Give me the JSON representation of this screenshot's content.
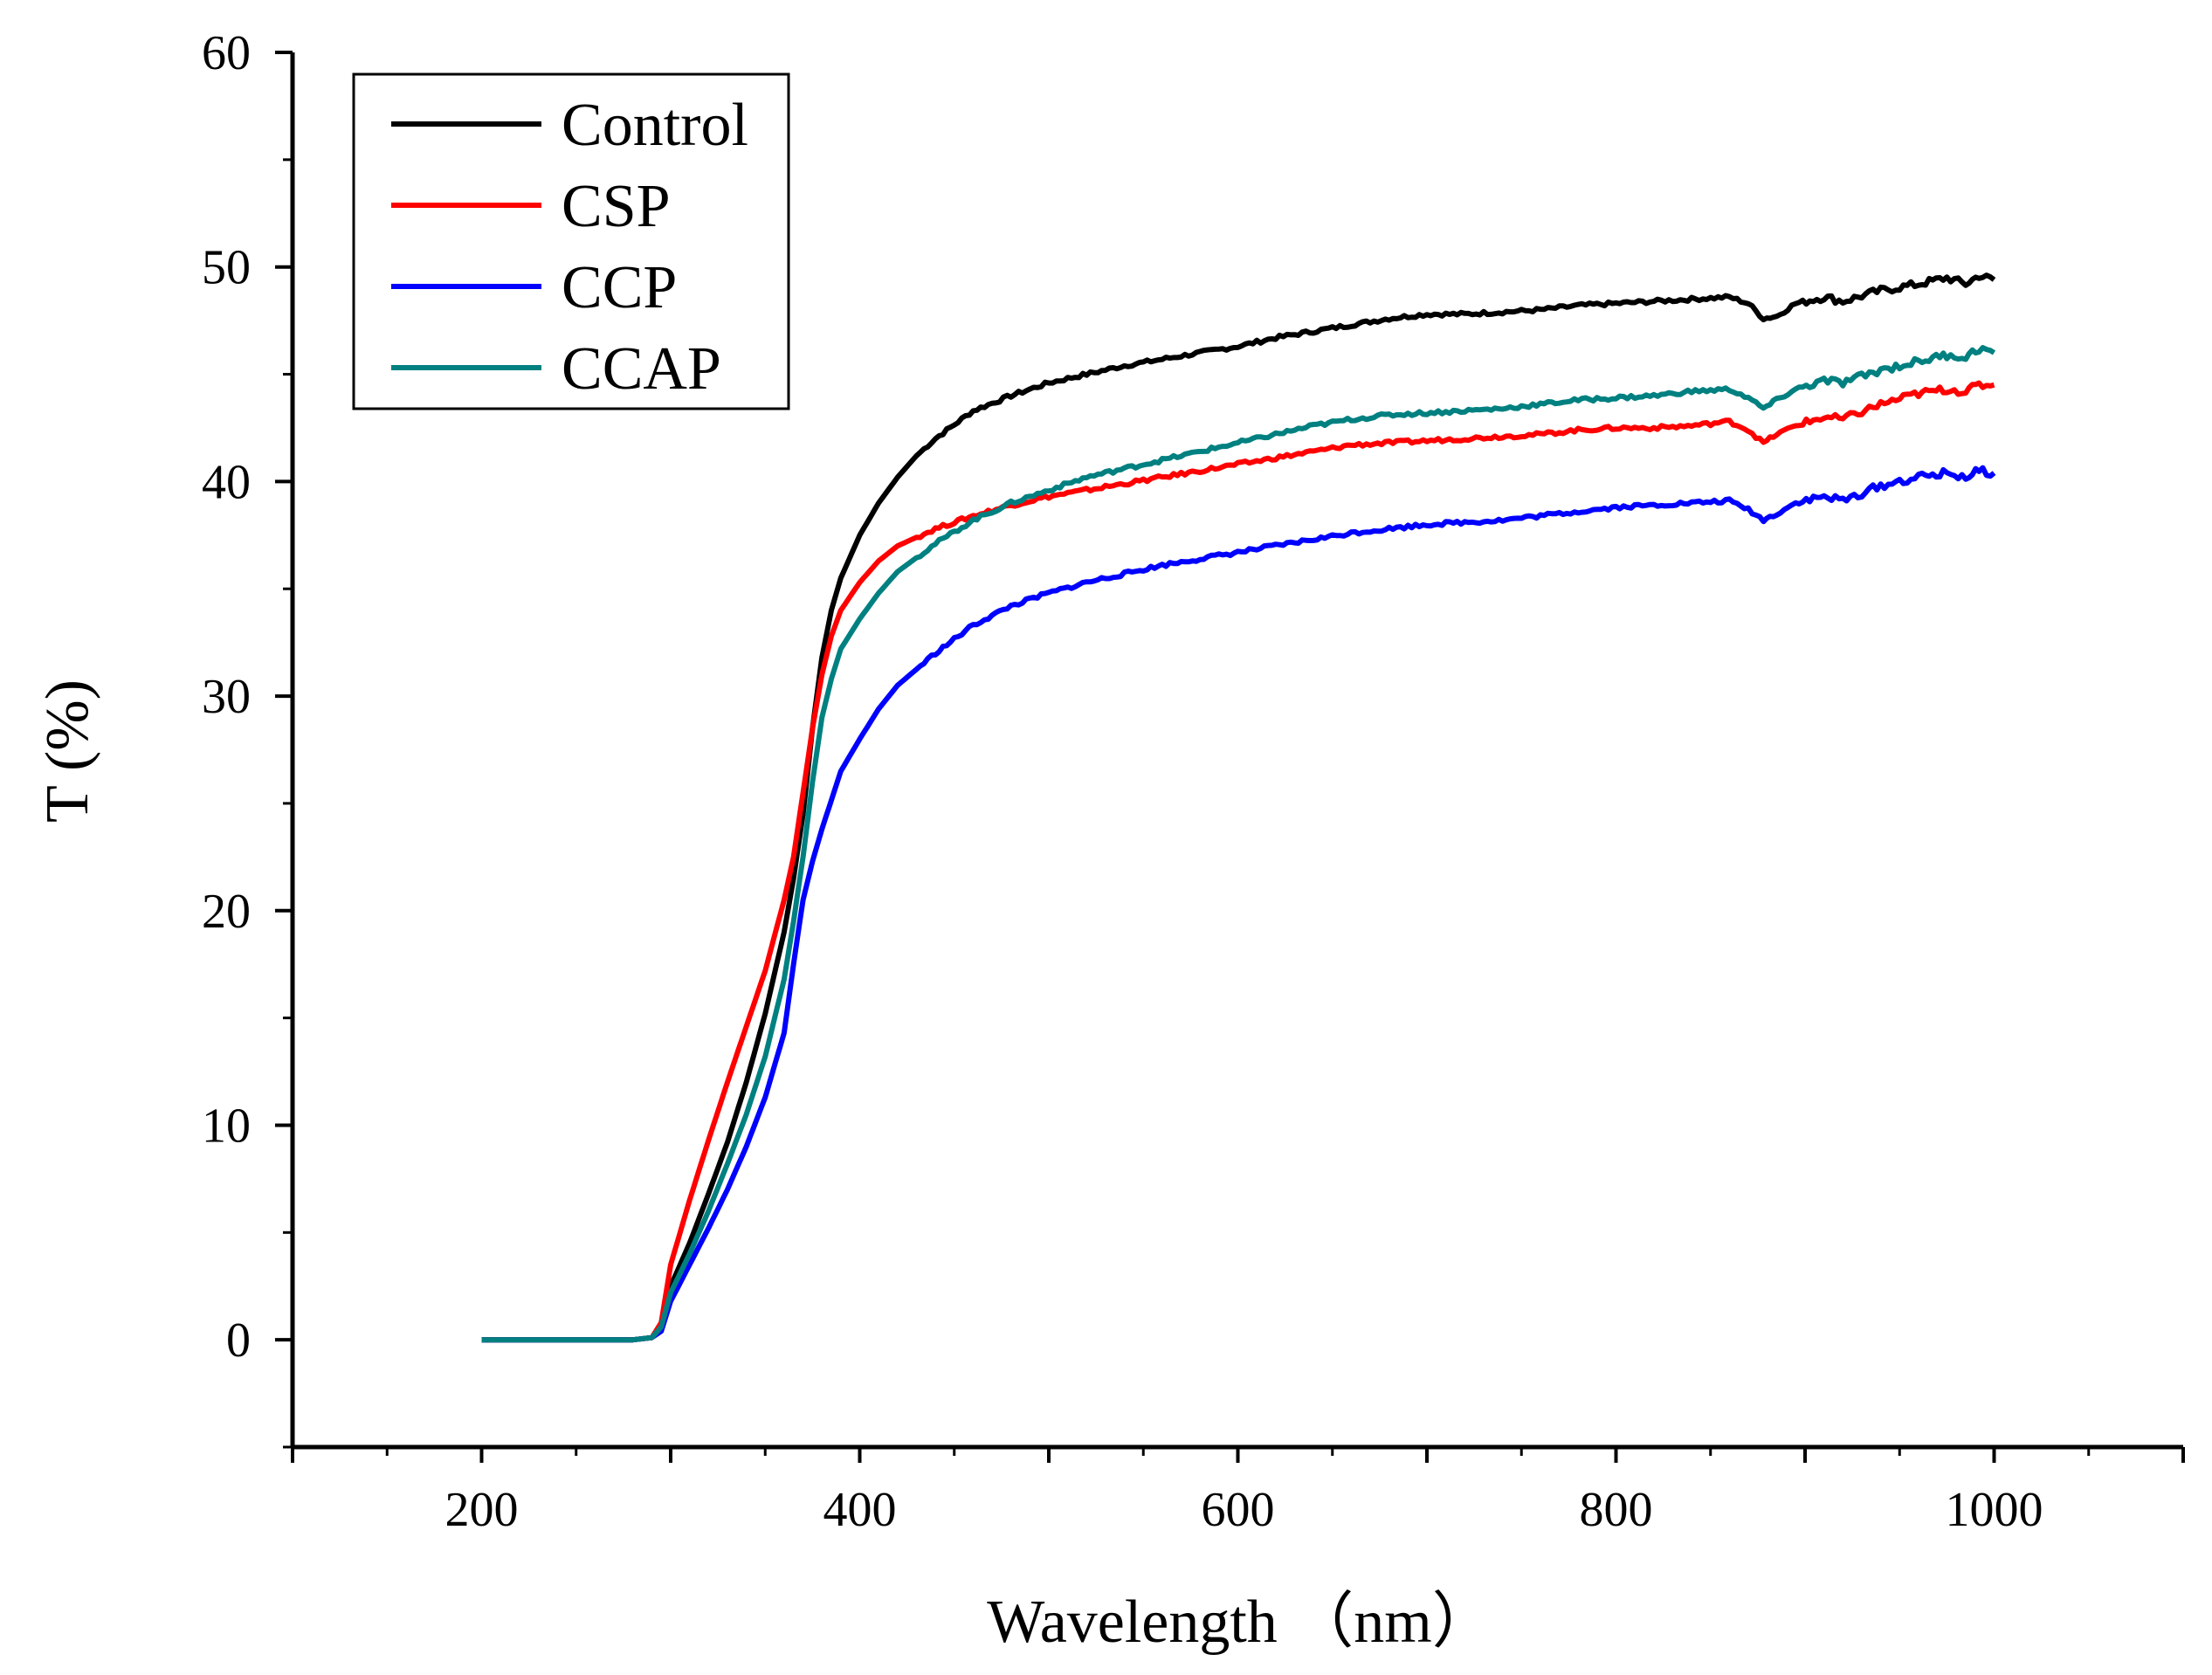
{
  "chart_data": {
    "type": "line",
    "title": "",
    "xlabel": "Wavelength （nm）",
    "ylabel": "T (%)",
    "xlim": [
      100,
      1100
    ],
    "ylim": [
      -5,
      60
    ],
    "xticks": [
      200,
      400,
      600,
      800,
      1000
    ],
    "xtick_labels": [
      "200",
      "400",
      "600",
      "800",
      "1000"
    ],
    "yticks": [
      0,
      10,
      20,
      30,
      40,
      50,
      60
    ],
    "ytick_labels": [
      "0",
      "10",
      "20",
      "30",
      "40",
      "50",
      "60"
    ],
    "legend_position": "top-left",
    "grid": false,
    "series": [
      {
        "name": "Control",
        "color": "#000000",
        "points": [
          [
            200,
            0
          ],
          [
            280,
            0
          ],
          [
            290,
            0.1
          ],
          [
            295,
            0.6
          ],
          [
            300,
            2.5
          ],
          [
            310,
            4.5
          ],
          [
            320,
            6.8
          ],
          [
            330,
            9.2
          ],
          [
            340,
            12
          ],
          [
            350,
            15.2
          ],
          [
            360,
            19
          ],
          [
            365,
            21.5
          ],
          [
            370,
            24.5
          ],
          [
            375,
            28.5
          ],
          [
            380,
            31.8
          ],
          [
            385,
            34
          ],
          [
            390,
            35.5
          ],
          [
            400,
            37.5
          ],
          [
            410,
            39
          ],
          [
            420,
            40.2
          ],
          [
            430,
            41.2
          ],
          [
            440,
            42
          ],
          [
            460,
            43.3
          ],
          [
            480,
            44
          ],
          [
            500,
            44.6
          ],
          [
            520,
            45
          ],
          [
            540,
            45.4
          ],
          [
            560,
            45.7
          ],
          [
            580,
            46
          ],
          [
            600,
            46.3
          ],
          [
            620,
            46.7
          ],
          [
            640,
            47
          ],
          [
            660,
            47.3
          ],
          [
            680,
            47.6
          ],
          [
            700,
            47.8
          ],
          [
            720,
            47.8
          ],
          [
            740,
            47.9
          ],
          [
            760,
            48
          ],
          [
            780,
            48.2
          ],
          [
            800,
            48.3
          ],
          [
            820,
            48.4
          ],
          [
            840,
            48.5
          ],
          [
            860,
            48.6
          ],
          [
            870,
            48.3
          ],
          [
            878,
            47.6
          ],
          [
            885,
            47.7
          ],
          [
            895,
            48.3
          ],
          [
            910,
            48.6
          ],
          [
            920,
            48.4
          ],
          [
            940,
            48.9
          ],
          [
            960,
            49.2
          ],
          [
            975,
            49.5
          ],
          [
            985,
            49.2
          ],
          [
            992,
            49.6
          ],
          [
            1000,
            49.4
          ]
        ]
      },
      {
        "name": "CSP",
        "color": "#ff0000",
        "points": [
          [
            200,
            0
          ],
          [
            280,
            0
          ],
          [
            290,
            0.1
          ],
          [
            295,
            0.8
          ],
          [
            300,
            3.5
          ],
          [
            310,
            6.5
          ],
          [
            320,
            9.3
          ],
          [
            330,
            12
          ],
          [
            340,
            14.6
          ],
          [
            350,
            17.2
          ],
          [
            360,
            20.5
          ],
          [
            365,
            22.5
          ],
          [
            370,
            25.5
          ],
          [
            375,
            28.5
          ],
          [
            380,
            31
          ],
          [
            385,
            32.8
          ],
          [
            390,
            34
          ],
          [
            400,
            35.3
          ],
          [
            410,
            36.3
          ],
          [
            420,
            37
          ],
          [
            440,
            37.8
          ],
          [
            460,
            38.4
          ],
          [
            480,
            38.9
          ],
          [
            500,
            39.3
          ],
          [
            520,
            39.6
          ],
          [
            540,
            39.9
          ],
          [
            560,
            40.2
          ],
          [
            580,
            40.5
          ],
          [
            600,
            40.8
          ],
          [
            620,
            41.1
          ],
          [
            640,
            41.4
          ],
          [
            660,
            41.7
          ],
          [
            680,
            41.8
          ],
          [
            700,
            41.9
          ],
          [
            720,
            42
          ],
          [
            740,
            42.1
          ],
          [
            760,
            42.2
          ],
          [
            780,
            42.4
          ],
          [
            800,
            42.5
          ],
          [
            820,
            42.5
          ],
          [
            840,
            42.6
          ],
          [
            860,
            42.8
          ],
          [
            870,
            42.4
          ],
          [
            878,
            41.8
          ],
          [
            885,
            42.2
          ],
          [
            895,
            42.6
          ],
          [
            910,
            43
          ],
          [
            920,
            42.9
          ],
          [
            940,
            43.6
          ],
          [
            960,
            44.1
          ],
          [
            975,
            44.3
          ],
          [
            985,
            44.2
          ],
          [
            992,
            44.5
          ],
          [
            1000,
            44.5
          ]
        ]
      },
      {
        "name": "CCP",
        "color": "#0000ff",
        "points": [
          [
            200,
            0
          ],
          [
            280,
            0
          ],
          [
            290,
            0.1
          ],
          [
            295,
            0.4
          ],
          [
            300,
            1.8
          ],
          [
            310,
            3.5
          ],
          [
            320,
            5.2
          ],
          [
            330,
            7
          ],
          [
            340,
            9
          ],
          [
            350,
            11.3
          ],
          [
            360,
            14.3
          ],
          [
            365,
            17.5
          ],
          [
            370,
            20.5
          ],
          [
            375,
            22.3
          ],
          [
            380,
            23.8
          ],
          [
            390,
            26.5
          ],
          [
            400,
            28
          ],
          [
            410,
            29.4
          ],
          [
            420,
            30.5
          ],
          [
            440,
            32
          ],
          [
            460,
            33.3
          ],
          [
            480,
            34.2
          ],
          [
            500,
            34.8
          ],
          [
            520,
            35.3
          ],
          [
            540,
            35.7
          ],
          [
            560,
            36.1
          ],
          [
            580,
            36.4
          ],
          [
            600,
            36.7
          ],
          [
            620,
            37
          ],
          [
            640,
            37.3
          ],
          [
            660,
            37.6
          ],
          [
            680,
            37.8
          ],
          [
            700,
            38
          ],
          [
            720,
            38.1
          ],
          [
            740,
            38.2
          ],
          [
            760,
            38.4
          ],
          [
            780,
            38.6
          ],
          [
            800,
            38.8
          ],
          [
            820,
            38.9
          ],
          [
            840,
            39
          ],
          [
            860,
            39.1
          ],
          [
            870,
            38.7
          ],
          [
            878,
            38.2
          ],
          [
            885,
            38.5
          ],
          [
            895,
            39
          ],
          [
            910,
            39.3
          ],
          [
            920,
            39.1
          ],
          [
            940,
            39.8
          ],
          [
            960,
            40.2
          ],
          [
            975,
            40.4
          ],
          [
            985,
            40.2
          ],
          [
            992,
            40.5
          ],
          [
            1000,
            40.4
          ]
        ]
      },
      {
        "name": "CCAP",
        "color": "#008080",
        "points": [
          [
            200,
            0
          ],
          [
            280,
            0
          ],
          [
            290,
            0.1
          ],
          [
            295,
            0.6
          ],
          [
            300,
            2.2
          ],
          [
            310,
            4
          ],
          [
            320,
            6
          ],
          [
            330,
            8.2
          ],
          [
            340,
            10.5
          ],
          [
            350,
            13.2
          ],
          [
            360,
            16.8
          ],
          [
            365,
            19.5
          ],
          [
            370,
            22.5
          ],
          [
            375,
            26
          ],
          [
            380,
            29
          ],
          [
            385,
            30.8
          ],
          [
            390,
            32.2
          ],
          [
            400,
            33.6
          ],
          [
            410,
            34.8
          ],
          [
            420,
            35.8
          ],
          [
            440,
            37.1
          ],
          [
            460,
            38.2
          ],
          [
            480,
            39
          ],
          [
            500,
            39.6
          ],
          [
            520,
            40.2
          ],
          [
            540,
            40.6
          ],
          [
            560,
            41
          ],
          [
            580,
            41.4
          ],
          [
            600,
            41.8
          ],
          [
            620,
            42.2
          ],
          [
            640,
            42.6
          ],
          [
            660,
            42.9
          ],
          [
            680,
            43.1
          ],
          [
            700,
            43.2
          ],
          [
            720,
            43.3
          ],
          [
            740,
            43.4
          ],
          [
            760,
            43.6
          ],
          [
            780,
            43.8
          ],
          [
            800,
            43.9
          ],
          [
            820,
            44
          ],
          [
            840,
            44.2
          ],
          [
            860,
            44.3
          ],
          [
            870,
            43.9
          ],
          [
            878,
            43.4
          ],
          [
            885,
            43.8
          ],
          [
            895,
            44.3
          ],
          [
            910,
            44.7
          ],
          [
            920,
            44.6
          ],
          [
            940,
            45.2
          ],
          [
            960,
            45.6
          ],
          [
            975,
            45.9
          ],
          [
            985,
            45.8
          ],
          [
            992,
            46.2
          ],
          [
            1000,
            46
          ]
        ]
      }
    ]
  }
}
